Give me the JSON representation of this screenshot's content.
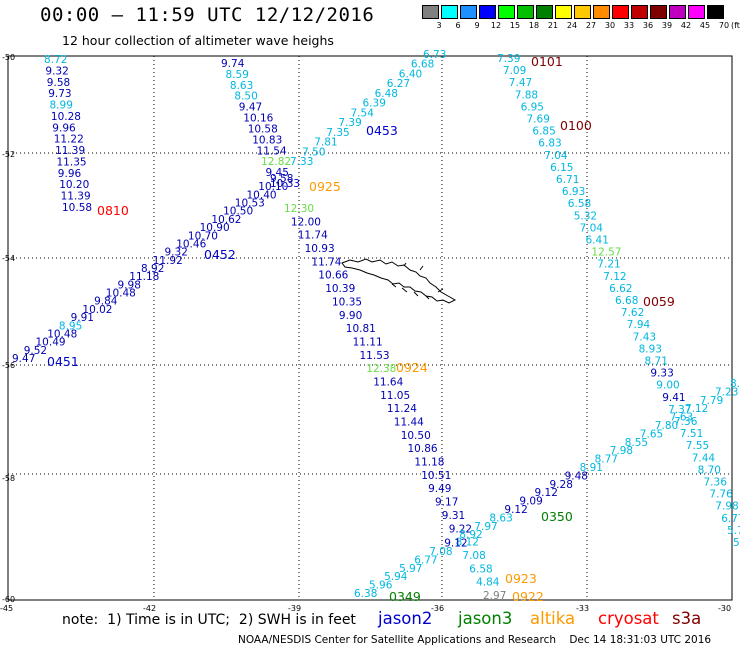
{
  "header": {
    "title": "00:00 — 11:59 UTC 12/12/2016",
    "subtitle": "12 hour collection of altimeter wave heighs"
  },
  "legend": {
    "unit": "(ft)",
    "bins": [
      {
        "label": "3",
        "color": "#808080"
      },
      {
        "label": "6",
        "color": "#00ffff"
      },
      {
        "label": "9",
        "color": "#1e90ff"
      },
      {
        "label": "12",
        "color": "#0000ff"
      },
      {
        "label": "15",
        "color": "#00ff00"
      },
      {
        "label": "18",
        "color": "#00c000"
      },
      {
        "label": "21",
        "color": "#008000"
      },
      {
        "label": "24",
        "color": "#ffff00"
      },
      {
        "label": "27",
        "color": "#ffc800"
      },
      {
        "label": "30",
        "color": "#ff8c00"
      },
      {
        "label": "33",
        "color": "#ff0000"
      },
      {
        "label": "36",
        "color": "#c00000"
      },
      {
        "label": "39",
        "color": "#800000"
      },
      {
        "label": "42",
        "color": "#c000c0"
      },
      {
        "label": "45",
        "color": "#ff00ff"
      },
      {
        "label": "70",
        "color": "#000000"
      }
    ]
  },
  "axes": {
    "lat_labels": [
      "-50",
      "-52",
      "-54",
      "-56",
      "-58",
      "-60"
    ],
    "lon_labels": [
      "-45",
      "-42",
      "-39",
      "-36",
      "-33",
      "-30"
    ]
  },
  "colors": {
    "jason2": "#0000cc",
    "jason3": "#008000",
    "altika": "#ff9900",
    "cryosat": "#ff0000",
    "s3a": "#800000",
    "cyan": "#00b7e0",
    "lightgreen": "#66dd44",
    "gray": "#808080"
  },
  "passes": [
    {
      "label": "0810",
      "color": "#ff0000"
    },
    {
      "label": "0451",
      "color": "#0000cc"
    },
    {
      "label": "0452",
      "color": "#0000cc"
    },
    {
      "label": "0453",
      "color": "#0000cc"
    },
    {
      "label": "0925",
      "color": "#ff9900"
    },
    {
      "label": "0924",
      "color": "#ff9900"
    },
    {
      "label": "0101",
      "color": "#800000"
    },
    {
      "label": "0100",
      "color": "#800000"
    },
    {
      "label": "0059",
      "color": "#800000"
    },
    {
      "label": "0350",
      "color": "#008000"
    },
    {
      "label": "0349",
      "color": "#008000"
    },
    {
      "label": "0923",
      "color": "#ff9900"
    },
    {
      "label": "0922",
      "color": "#ff9900"
    }
  ],
  "tracks": [
    {
      "id": "cryosat-0810",
      "values": [
        {
          "v": "8.72",
          "c": "cyan"
        },
        {
          "v": "9.32",
          "c": "navy"
        },
        {
          "v": "9.58",
          "c": "navy"
        },
        {
          "v": "9.73",
          "c": "navy"
        },
        {
          "v": "8.99",
          "c": "cyan"
        },
        {
          "v": "10.28",
          "c": "navy"
        },
        {
          "v": "9.96",
          "c": "navy"
        },
        {
          "v": "11.22",
          "c": "navy"
        },
        {
          "v": "11.39",
          "c": "navy"
        },
        {
          "v": "11.35",
          "c": "navy"
        },
        {
          "v": "9.96",
          "c": "navy"
        },
        {
          "v": "10.20",
          "c": "navy"
        },
        {
          "v": "11.39",
          "c": "navy"
        },
        {
          "v": "10.58",
          "c": "navy"
        }
      ]
    },
    {
      "id": "altika-0925-upper",
      "values": [
        {
          "v": "9.74",
          "c": "navy"
        },
        {
          "v": "8.59",
          "c": "cyan"
        },
        {
          "v": "8.63",
          "c": "cyan"
        },
        {
          "v": "8.50",
          "c": "cyan"
        },
        {
          "v": "9.47",
          "c": "navy"
        },
        {
          "v": "10.16",
          "c": "navy"
        },
        {
          "v": "10.58",
          "c": "navy"
        },
        {
          "v": "10.83",
          "c": "navy"
        },
        {
          "v": "11.54",
          "c": "navy"
        },
        {
          "v": "12.82",
          "c": "lightgreen"
        },
        {
          "v": "9.45",
          "c": "navy"
        },
        {
          "v": "10.33",
          "c": "navy"
        }
      ]
    },
    {
      "id": "altika-0924",
      "values": [
        {
          "v": "12.30",
          "c": "lightgreen"
        },
        {
          "v": "12.00",
          "c": "navy"
        },
        {
          "v": "11.74",
          "c": "navy"
        },
        {
          "v": "10.93",
          "c": "navy"
        },
        {
          "v": "11.74",
          "c": "navy"
        },
        {
          "v": "10.66",
          "c": "navy"
        },
        {
          "v": "10.39",
          "c": "navy"
        },
        {
          "v": "10.35",
          "c": "navy"
        },
        {
          "v": "9.90",
          "c": "navy"
        },
        {
          "v": "10.81",
          "c": "navy"
        },
        {
          "v": "11.11",
          "c": "navy"
        },
        {
          "v": "11.53",
          "c": "navy"
        },
        {
          "v": "12.38",
          "c": "lightgreen"
        },
        {
          "v": "11.64",
          "c": "navy"
        },
        {
          "v": "11.05",
          "c": "navy"
        },
        {
          "v": "11.24",
          "c": "navy"
        },
        {
          "v": "11.44",
          "c": "navy"
        },
        {
          "v": "10.50",
          "c": "navy"
        },
        {
          "v": "10.86",
          "c": "navy"
        },
        {
          "v": "11.18",
          "c": "navy"
        },
        {
          "v": "10.51",
          "c": "navy"
        },
        {
          "v": "9.49",
          "c": "navy"
        },
        {
          "v": "9.17",
          "c": "navy"
        },
        {
          "v": "9.31",
          "c": "navy"
        },
        {
          "v": "9.22",
          "c": "navy"
        },
        {
          "v": "8.12",
          "c": "cyan"
        },
        {
          "v": "7.08",
          "c": "cyan"
        },
        {
          "v": "6.58",
          "c": "cyan"
        },
        {
          "v": "4.84",
          "c": "cyan"
        },
        {
          "v": "2.97",
          "c": "gray"
        }
      ]
    },
    {
      "id": "jason2-0453",
      "values": [
        {
          "v": "6.73",
          "c": "cyan"
        },
        {
          "v": "6.68",
          "c": "cyan"
        },
        {
          "v": "6.40",
          "c": "cyan"
        },
        {
          "v": "6.27",
          "c": "cyan"
        },
        {
          "v": "6.48",
          "c": "cyan"
        },
        {
          "v": "6.39",
          "c": "cyan"
        },
        {
          "v": "7.54",
          "c": "cyan"
        },
        {
          "v": "7.39",
          "c": "cyan"
        },
        {
          "v": "7.35",
          "c": "cyan"
        },
        {
          "v": "7.81",
          "c": "cyan"
        },
        {
          "v": "7.50",
          "c": "cyan"
        },
        {
          "v": "7.33",
          "c": "cyan"
        }
      ]
    },
    {
      "id": "jason2-0452",
      "values": [
        {
          "v": "9.58",
          "c": "navy"
        },
        {
          "v": "10.10",
          "c": "navy"
        },
        {
          "v": "10.40",
          "c": "navy"
        },
        {
          "v": "10.53",
          "c": "navy"
        },
        {
          "v": "10.50",
          "c": "navy"
        },
        {
          "v": "10.62",
          "c": "navy"
        },
        {
          "v": "10.90",
          "c": "navy"
        },
        {
          "v": "10.70",
          "c": "navy"
        },
        {
          "v": "10.46",
          "c": "navy"
        },
        {
          "v": "9.32",
          "c": "navy"
        },
        {
          "v": "11.92",
          "c": "navy"
        },
        {
          "v": "8.92",
          "c": "navy"
        },
        {
          "v": "11.18",
          "c": "navy"
        },
        {
          "v": "9.98",
          "c": "navy"
        },
        {
          "v": "10.48",
          "c": "navy"
        },
        {
          "v": "9.84",
          "c": "navy"
        },
        {
          "v": "10.02",
          "c": "navy"
        },
        {
          "v": "9.91",
          "c": "navy"
        },
        {
          "v": "8.95",
          "c": "cyan"
        },
        {
          "v": "10.48",
          "c": "navy"
        },
        {
          "v": "10.49",
          "c": "navy"
        },
        {
          "v": "9.52",
          "c": "navy"
        },
        {
          "v": "9.47",
          "c": "navy"
        }
      ]
    },
    {
      "id": "s3a-0101",
      "values": [
        {
          "v": "7.39",
          "c": "cyan"
        },
        {
          "v": "7.09",
          "c": "cyan"
        },
        {
          "v": "7.47",
          "c": "cyan"
        },
        {
          "v": "7.88",
          "c": "cyan"
        },
        {
          "v": "6.95",
          "c": "cyan"
        },
        {
          "v": "7.69",
          "c": "cyan"
        },
        {
          "v": "6.85",
          "c": "cyan"
        },
        {
          "v": "6.83",
          "c": "cyan"
        },
        {
          "v": "7.04",
          "c": "cyan"
        },
        {
          "v": "6.15",
          "c": "cyan"
        },
        {
          "v": "6.71",
          "c": "cyan"
        },
        {
          "v": "6.93",
          "c": "cyan"
        },
        {
          "v": "6.58",
          "c": "cyan"
        },
        {
          "v": "5.32",
          "c": "cyan"
        },
        {
          "v": "7.04",
          "c": "cyan"
        },
        {
          "v": "6.41",
          "c": "cyan"
        },
        {
          "v": "12.57",
          "c": "lightgreen"
        },
        {
          "v": "7.21",
          "c": "cyan"
        },
        {
          "v": "7.12",
          "c": "cyan"
        },
        {
          "v": "6.62",
          "c": "cyan"
        },
        {
          "v": "6.68",
          "c": "cyan"
        },
        {
          "v": "7.62",
          "c": "cyan"
        },
        {
          "v": "7.94",
          "c": "cyan"
        },
        {
          "v": "7.43",
          "c": "cyan"
        },
        {
          "v": "8.93",
          "c": "cyan"
        },
        {
          "v": "8.71",
          "c": "cyan"
        },
        {
          "v": "9.33",
          "c": "navy"
        },
        {
          "v": "9.00",
          "c": "cyan"
        },
        {
          "v": "9.41",
          "c": "navy"
        },
        {
          "v": "7.37",
          "c": "cyan"
        },
        {
          "v": "7.36",
          "c": "cyan"
        },
        {
          "v": "7.51",
          "c": "cyan"
        },
        {
          "v": "7.55",
          "c": "cyan"
        },
        {
          "v": "7.44",
          "c": "cyan"
        },
        {
          "v": "8.70",
          "c": "cyan"
        },
        {
          "v": "7.36",
          "c": "cyan"
        },
        {
          "v": "7.76",
          "c": "cyan"
        },
        {
          "v": "7.98",
          "c": "cyan"
        },
        {
          "v": "6.77",
          "c": "cyan"
        },
        {
          "v": "5.7",
          "c": "cyan"
        },
        {
          "v": "5",
          "c": "cyan"
        }
      ]
    },
    {
      "id": "jason3-0349",
      "values": [
        {
          "v": "8.3",
          "c": "cyan"
        },
        {
          "v": "7.23",
          "c": "cyan"
        },
        {
          "v": "7.79",
          "c": "cyan"
        },
        {
          "v": "7.12",
          "c": "cyan"
        },
        {
          "v": "7.63",
          "c": "cyan"
        },
        {
          "v": "7.80",
          "c": "cyan"
        },
        {
          "v": "7.65",
          "c": "cyan"
        },
        {
          "v": "8.55",
          "c": "cyan"
        },
        {
          "v": "7.98",
          "c": "cyan"
        },
        {
          "v": "8.77",
          "c": "cyan"
        },
        {
          "v": "8.91",
          "c": "cyan"
        },
        {
          "v": "9.48",
          "c": "navy"
        },
        {
          "v": "9.28",
          "c": "navy"
        },
        {
          "v": "9.12",
          "c": "navy"
        },
        {
          "v": "9.09",
          "c": "navy"
        },
        {
          "v": "9.12",
          "c": "navy"
        },
        {
          "v": "8.63",
          "c": "cyan"
        },
        {
          "v": "7.97",
          "c": "cyan"
        },
        {
          "v": "8.92",
          "c": "cyan"
        },
        {
          "v": "9.12",
          "c": "navy"
        },
        {
          "v": "7.08",
          "c": "cyan"
        },
        {
          "v": "6.77",
          "c": "cyan"
        },
        {
          "v": "5.97",
          "c": "cyan"
        },
        {
          "v": "5.94",
          "c": "cyan"
        },
        {
          "v": "5.96",
          "c": "cyan"
        },
        {
          "v": "6.38",
          "c": "cyan"
        }
      ]
    }
  ],
  "footer": {
    "note": "note:  1) Time is in UTC;  2) SWH is in feet",
    "satellites": [
      {
        "name": "jason2",
        "color": "#0000cc"
      },
      {
        "name": "jason3",
        "color": "#008000"
      },
      {
        "name": "altika",
        "color": "#ff9900"
      },
      {
        "name": "cryosat",
        "color": "#ff0000"
      },
      {
        "name": "s3a",
        "color": "#800000"
      }
    ],
    "credit": "NOAA/NESDIS Center for Satellite Applications and Research    Dec 14 18:31:03 UTC 2016"
  }
}
